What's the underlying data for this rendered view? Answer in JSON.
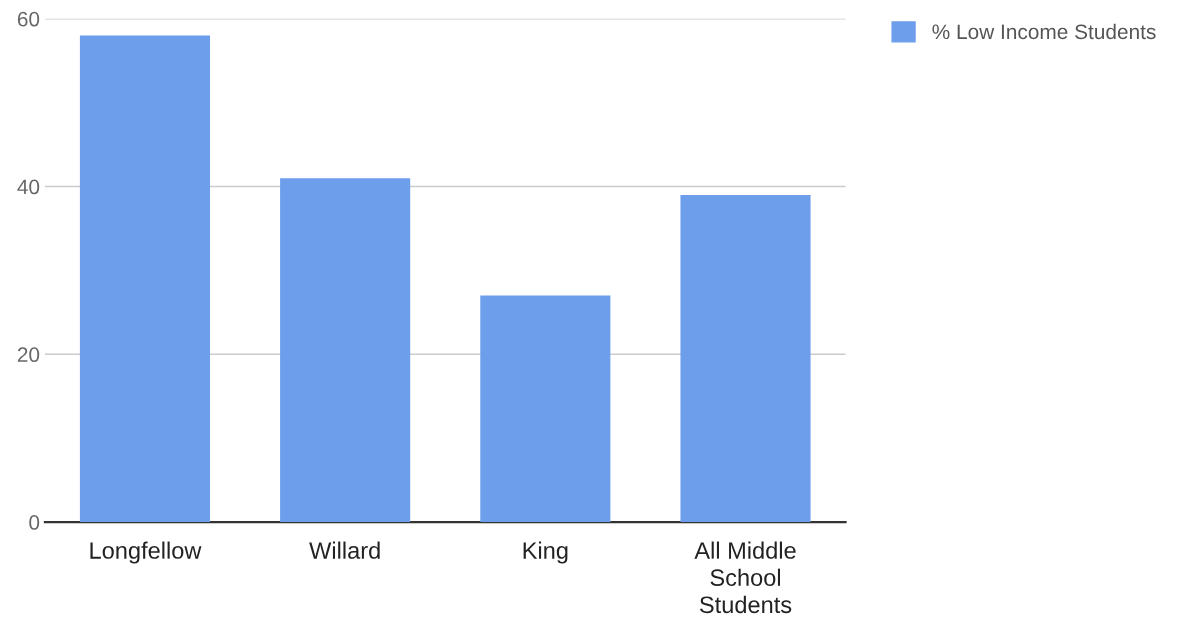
{
  "chart_data": {
    "type": "bar",
    "categories": [
      "Longfellow",
      "Willard",
      "King",
      "All Middle School Students"
    ],
    "series": [
      {
        "name": "% Low Income Students",
        "color": "#6d9eeb",
        "values": [
          58,
          41,
          27,
          39
        ]
      }
    ],
    "ylim": [
      0,
      60
    ],
    "yticks": [
      0,
      20,
      40,
      60
    ],
    "grid": "y",
    "legend": "top right"
  }
}
